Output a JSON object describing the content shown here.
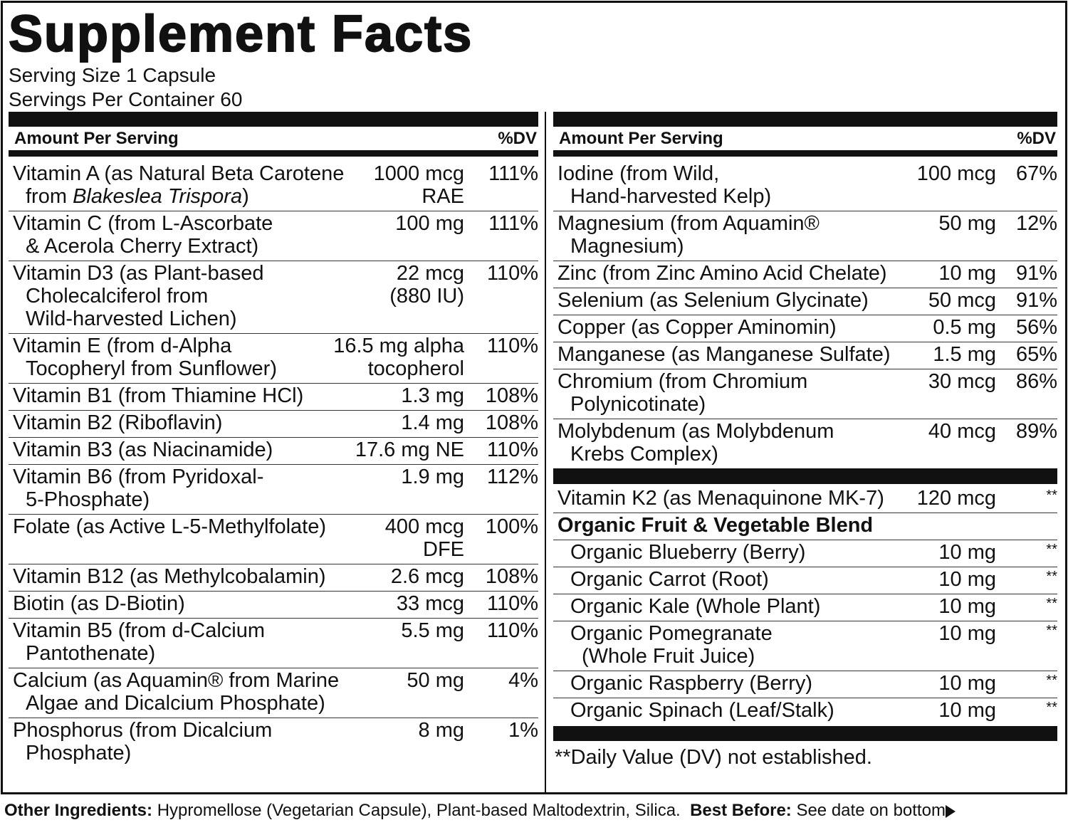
{
  "header": {
    "title": "Supplement Facts",
    "serving_size": "Serving Size 1 Capsule",
    "servings_per_container": "Servings Per Container 60"
  },
  "left": {
    "column_headers": [
      "Amount Per Serving",
      "%DV"
    ],
    "rows": [
      {
        "name": [
          "Vitamin A (as Natural Beta Carotene",
          [
            "from ",
            "Blakeslea Trispora",
            ")"
          ]
        ],
        "amount": [
          "1000 mcg",
          "RAE"
        ],
        "dv": "111%"
      },
      {
        "name": [
          "Vitamin C (from L-Ascorbate",
          "& Acerola Cherry Extract)"
        ],
        "amount": [
          "100 mg"
        ],
        "dv": "111%"
      },
      {
        "name": [
          "Vitamin D3 (as Plant-based",
          "Cholecalciferol from",
          "Wild-harvested Lichen)"
        ],
        "amount": [
          "22 mcg",
          "(880 IU)"
        ],
        "dv": "110%"
      },
      {
        "name": [
          "Vitamin E (from d-Alpha",
          "Tocopheryl from Sunflower)"
        ],
        "amount": [
          "16.5 mg alpha",
          "tocopherol"
        ],
        "dv": "110%"
      },
      {
        "name": [
          "Vitamin B1 (from Thiamine HCl)"
        ],
        "amount": [
          "1.3 mg"
        ],
        "dv": "108%"
      },
      {
        "name": [
          "Vitamin B2 (Riboflavin)"
        ],
        "amount": [
          "1.4 mg"
        ],
        "dv": "108%"
      },
      {
        "name": [
          "Vitamin B3 (as Niacinamide)"
        ],
        "amount": [
          "17.6 mg NE"
        ],
        "dv": "110%"
      },
      {
        "name": [
          "Vitamin B6 (from Pyridoxal-",
          "5-Phosphate)"
        ],
        "amount": [
          "1.9 mg"
        ],
        "dv": "112%"
      },
      {
        "name": [
          "Folate (as Active L-5-Methylfolate)"
        ],
        "amount": [
          "400 mcg",
          "DFE"
        ],
        "dv": "100%"
      },
      {
        "name": [
          "Vitamin B12 (as Methylcobalamin)"
        ],
        "amount": [
          "2.6 mcg"
        ],
        "dv": "108%"
      },
      {
        "name": [
          "Biotin (as D-Biotin)"
        ],
        "amount": [
          "33 mcg"
        ],
        "dv": "110%"
      },
      {
        "name": [
          "Vitamin B5 (from d-Calcium",
          "Pantothenate)"
        ],
        "amount": [
          "5.5 mg"
        ],
        "dv": "110%"
      },
      {
        "name": [
          "Calcium (as Aquamin® from Marine",
          "Algae and Dicalcium Phosphate)"
        ],
        "amount": [
          "50 mg"
        ],
        "dv": "4%"
      },
      {
        "name": [
          "Phosphorus (from Dicalcium",
          "Phosphate)"
        ],
        "amount": [
          "8 mg"
        ],
        "dv": "1%"
      }
    ]
  },
  "right": {
    "column_headers": [
      "Amount Per Serving",
      "%DV"
    ],
    "rows": [
      {
        "name": [
          "Iodine (from Wild,",
          "Hand-harvested Kelp)"
        ],
        "amount": [
          "100 mcg"
        ],
        "dv": "67%"
      },
      {
        "name": [
          "Magnesium (from Aquamin®",
          "Magnesium)"
        ],
        "amount": [
          "50 mg"
        ],
        "dv": "12%"
      },
      {
        "name": [
          "Zinc (from Zinc Amino Acid Chelate)"
        ],
        "amount": [
          "10 mg"
        ],
        "dv": "91%"
      },
      {
        "name": [
          "Selenium (as Selenium Glycinate)"
        ],
        "amount": [
          "50 mcg"
        ],
        "dv": "91%"
      },
      {
        "name": [
          "Copper (as Copper Aminomin)"
        ],
        "amount": [
          "0.5 mg"
        ],
        "dv": "56%"
      },
      {
        "name": [
          "Manganese (as Manganese Sulfate)"
        ],
        "amount": [
          "1.5 mg"
        ],
        "dv": "65%"
      },
      {
        "name": [
          "Chromium (from Chromium",
          "Polynicotinate)"
        ],
        "amount": [
          "30 mcg"
        ],
        "dv": "86%"
      },
      {
        "name": [
          "Molybdenum (as Molybdenum",
          "Krebs Complex)"
        ],
        "amount": [
          "40 mcg"
        ],
        "dv": "89%"
      }
    ],
    "extra_rows": [
      {
        "name": [
          "Vitamin K2 (as Menaquinone MK-7)"
        ],
        "amount": [
          "120 mcg"
        ],
        "dv": "**"
      }
    ],
    "blend": {
      "title": "Organic Fruit & Vegetable Blend",
      "rows": [
        {
          "name": [
            "Organic Blueberry (Berry)"
          ],
          "amount": [
            "10 mg"
          ],
          "dv": "**"
        },
        {
          "name": [
            "Organic Carrot (Root)"
          ],
          "amount": [
            "10 mg"
          ],
          "dv": "**"
        },
        {
          "name": [
            "Organic Kale (Whole Plant)"
          ],
          "amount": [
            "10 mg"
          ],
          "dv": "**"
        },
        {
          "name": [
            "Organic Pomegranate",
            "(Whole Fruit Juice)"
          ],
          "amount": [
            "10 mg"
          ],
          "dv": "**"
        },
        {
          "name": [
            "Organic Raspberry (Berry)"
          ],
          "amount": [
            "10 mg"
          ],
          "dv": "**"
        },
        {
          "name": [
            "Organic  Spinach (Leaf/Stalk)"
          ],
          "amount": [
            "10 mg"
          ],
          "dv": "**"
        }
      ]
    },
    "footnote": "**Daily Value (DV) not established."
  },
  "other_ingredients": {
    "label": "Other Ingredients:",
    "text": "Hypromellose (Vegetarian Capsule), Plant-based Maltodextrin, Silica."
  },
  "best_before": {
    "label": "Best Before:",
    "text": "See date on bottom"
  }
}
